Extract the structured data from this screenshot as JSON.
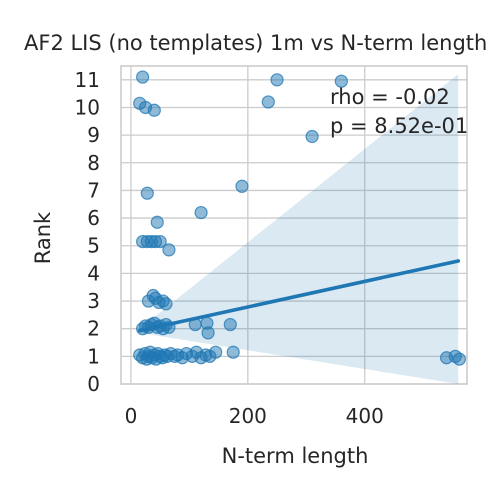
{
  "chart_data": {
    "type": "scatter",
    "title": "AF2 LIS (no templates) 1m vs N-term length",
    "xlabel": "N-term length",
    "ylabel": "Rank",
    "xlim": [
      -17,
      575
    ],
    "ylim": [
      0,
      11.5
    ],
    "xticks": [
      0,
      200,
      400
    ],
    "yticks": [
      0,
      1,
      2,
      3,
      4,
      5,
      6,
      7,
      8,
      9,
      10,
      11
    ],
    "grid": true,
    "annotations": [
      "rho = -0.02",
      "p = 8.52e-01"
    ],
    "colors": {
      "points": "#1f77b4",
      "line": "#1f77b4",
      "band": "#1f77b4",
      "grid": "#cccccc",
      "axes": "#cccccc"
    },
    "regression": {
      "x": [
        15,
        560
      ],
      "y": [
        1.93,
        4.45
      ]
    },
    "confidence_band": {
      "x": [
        15,
        560
      ],
      "upper": [
        2.0,
        11.2
      ],
      "lower": [
        1.85,
        -0.2
      ]
    },
    "points": [
      {
        "x": 20,
        "y": 11.1
      },
      {
        "x": 250,
        "y": 11.0
      },
      {
        "x": 360,
        "y": 10.95
      },
      {
        "x": 15,
        "y": 10.15
      },
      {
        "x": 25,
        "y": 10.0
      },
      {
        "x": 40,
        "y": 9.9
      },
      {
        "x": 235,
        "y": 10.2
      },
      {
        "x": 310,
        "y": 8.95
      },
      {
        "x": 190,
        "y": 7.15
      },
      {
        "x": 28,
        "y": 6.9
      },
      {
        "x": 120,
        "y": 6.2
      },
      {
        "x": 45,
        "y": 5.85
      },
      {
        "x": 20,
        "y": 5.15
      },
      {
        "x": 28,
        "y": 5.15
      },
      {
        "x": 35,
        "y": 5.15
      },
      {
        "x": 42,
        "y": 5.15
      },
      {
        "x": 50,
        "y": 5.15
      },
      {
        "x": 65,
        "y": 4.85
      },
      {
        "x": 30,
        "y": 3.0
      },
      {
        "x": 38,
        "y": 3.2
      },
      {
        "x": 42,
        "y": 3.1
      },
      {
        "x": 48,
        "y": 2.95
      },
      {
        "x": 55,
        "y": 3.0
      },
      {
        "x": 60,
        "y": 2.9
      },
      {
        "x": 20,
        "y": 2.0
      },
      {
        "x": 25,
        "y": 2.1
      },
      {
        "x": 30,
        "y": 2.05
      },
      {
        "x": 35,
        "y": 2.15
      },
      {
        "x": 40,
        "y": 2.2
      },
      {
        "x": 45,
        "y": 2.05
      },
      {
        "x": 50,
        "y": 2.1
      },
      {
        "x": 55,
        "y": 2.0
      },
      {
        "x": 60,
        "y": 2.15
      },
      {
        "x": 65,
        "y": 2.05
      },
      {
        "x": 110,
        "y": 2.15
      },
      {
        "x": 130,
        "y": 2.2
      },
      {
        "x": 132,
        "y": 1.85
      },
      {
        "x": 170,
        "y": 2.15
      },
      {
        "x": 15,
        "y": 1.05
      },
      {
        "x": 20,
        "y": 0.95
      },
      {
        "x": 24,
        "y": 1.1
      },
      {
        "x": 27,
        "y": 0.9
      },
      {
        "x": 30,
        "y": 1.0
      },
      {
        "x": 33,
        "y": 1.15
      },
      {
        "x": 36,
        "y": 0.95
      },
      {
        "x": 40,
        "y": 1.05
      },
      {
        "x": 43,
        "y": 0.9
      },
      {
        "x": 46,
        "y": 1.1
      },
      {
        "x": 50,
        "y": 1.0
      },
      {
        "x": 54,
        "y": 0.95
      },
      {
        "x": 58,
        "y": 1.05
      },
      {
        "x": 62,
        "y": 1.0
      },
      {
        "x": 68,
        "y": 1.1
      },
      {
        "x": 75,
        "y": 1.0
      },
      {
        "x": 80,
        "y": 1.05
      },
      {
        "x": 88,
        "y": 0.95
      },
      {
        "x": 95,
        "y": 1.1
      },
      {
        "x": 105,
        "y": 1.0
      },
      {
        "x": 112,
        "y": 1.15
      },
      {
        "x": 120,
        "y": 0.95
      },
      {
        "x": 128,
        "y": 1.05
      },
      {
        "x": 135,
        "y": 1.0
      },
      {
        "x": 145,
        "y": 1.15
      },
      {
        "x": 175,
        "y": 1.15
      },
      {
        "x": 540,
        "y": 0.95
      },
      {
        "x": 555,
        "y": 1.0
      },
      {
        "x": 562,
        "y": 0.9
      }
    ]
  }
}
